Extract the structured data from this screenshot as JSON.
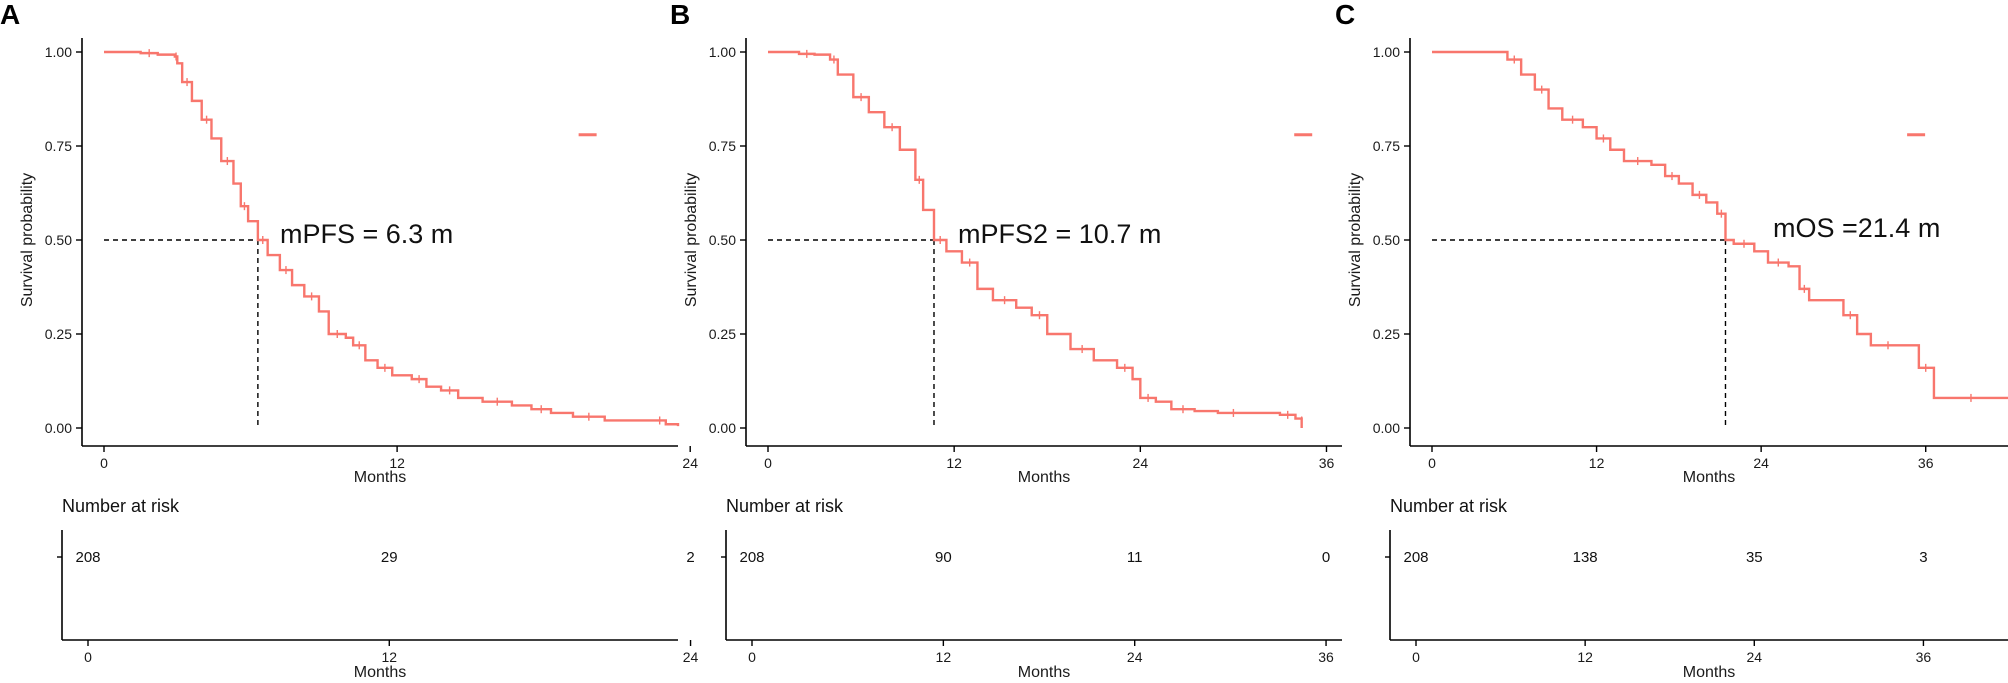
{
  "colors": {
    "curve": "#F8766D",
    "axis": "#000000",
    "median_line": "#000000"
  },
  "chart_data": [
    {
      "type": "line",
      "panel": "A",
      "annotation": "mPFS = 6.3 m",
      "median": 6.3,
      "xlabel": "Months",
      "ylabel": "Survival probability",
      "xlim": [
        -1.5,
        23.5
      ],
      "ylim": [
        0,
        1
      ],
      "x_ticks": [
        0,
        12,
        24
      ],
      "y_ticks": [
        "0.00",
        "0.25",
        "0.50",
        "0.75",
        "1.00"
      ],
      "survival_curve": [
        [
          0,
          1.0
        ],
        [
          1,
          1.0
        ],
        [
          1.5,
          0.997
        ],
        [
          2.2,
          0.993
        ],
        [
          2.9,
          0.988
        ],
        [
          3.0,
          0.97
        ],
        [
          3.2,
          0.92
        ],
        [
          3.6,
          0.87
        ],
        [
          4.0,
          0.82
        ],
        [
          4.4,
          0.77
        ],
        [
          4.8,
          0.71
        ],
        [
          5.3,
          0.65
        ],
        [
          5.6,
          0.59
        ],
        [
          5.9,
          0.55
        ],
        [
          6.3,
          0.5
        ],
        [
          6.7,
          0.46
        ],
        [
          7.2,
          0.42
        ],
        [
          7.7,
          0.38
        ],
        [
          8.2,
          0.35
        ],
        [
          8.8,
          0.31
        ],
        [
          9.2,
          0.25
        ],
        [
          9.9,
          0.24
        ],
        [
          10.2,
          0.22
        ],
        [
          10.7,
          0.18
        ],
        [
          11.2,
          0.16
        ],
        [
          11.8,
          0.14
        ],
        [
          12.6,
          0.13
        ],
        [
          13.2,
          0.11
        ],
        [
          13.8,
          0.1
        ],
        [
          14.5,
          0.08
        ],
        [
          15.5,
          0.07
        ],
        [
          16.7,
          0.06
        ],
        [
          17.5,
          0.05
        ],
        [
          18.3,
          0.04
        ],
        [
          19.2,
          0.03
        ],
        [
          20.5,
          0.02
        ],
        [
          22.5,
          0.02
        ],
        [
          23,
          0.01
        ],
        [
          23.5,
          0.005
        ]
      ],
      "legend_marker": [
        19.8,
        0.78
      ],
      "risk_table": {
        "title": "Number at risk",
        "xlabel": "Months",
        "times": [
          0,
          12,
          24
        ],
        "counts": [
          "208",
          "29",
          "2"
        ]
      }
    },
    {
      "type": "line",
      "panel": "B",
      "annotation": "mPFS2 = 10.7 m",
      "median": 10.7,
      "xlabel": "Months",
      "ylabel": "Survival probability",
      "xlim": [
        -1.5,
        37
      ],
      "ylim": [
        0,
        1
      ],
      "x_ticks": [
        0,
        12,
        24,
        36
      ],
      "y_ticks": [
        "0.00",
        "0.25",
        "0.50",
        "0.75",
        "1.00"
      ],
      "survival_curve": [
        [
          0,
          1.0
        ],
        [
          1,
          1.0
        ],
        [
          2,
          0.995
        ],
        [
          3.0,
          0.993
        ],
        [
          4.0,
          0.98
        ],
        [
          4.5,
          0.94
        ],
        [
          5.5,
          0.88
        ],
        [
          6.5,
          0.84
        ],
        [
          7.5,
          0.8
        ],
        [
          8.5,
          0.74
        ],
        [
          9.5,
          0.66
        ],
        [
          10.0,
          0.58
        ],
        [
          10.7,
          0.5
        ],
        [
          11.5,
          0.47
        ],
        [
          12.5,
          0.44
        ],
        [
          13.5,
          0.37
        ],
        [
          14.5,
          0.34
        ],
        [
          16,
          0.32
        ],
        [
          17,
          0.3
        ],
        [
          18,
          0.25
        ],
        [
          19.5,
          0.21
        ],
        [
          21,
          0.18
        ],
        [
          22.5,
          0.16
        ],
        [
          23.5,
          0.13
        ],
        [
          24,
          0.08
        ],
        [
          25,
          0.07
        ],
        [
          26,
          0.05
        ],
        [
          27.5,
          0.045
        ],
        [
          29,
          0.04
        ],
        [
          31,
          0.04
        ],
        [
          33,
          0.035
        ],
        [
          34,
          0.025
        ],
        [
          34.4,
          0.02
        ],
        [
          34.4,
          0.0
        ]
      ],
      "legend_marker": [
        34.5,
        0.78
      ],
      "risk_table": {
        "title": "Number at risk",
        "xlabel": "Months",
        "times": [
          0,
          12,
          24,
          36
        ],
        "counts": [
          "208",
          "90",
          "11",
          "0"
        ]
      }
    },
    {
      "type": "line",
      "panel": "C",
      "annotation": "mOS =21.4 m",
      "median": 21.4,
      "xlabel": "Months",
      "ylabel": "Survival probability",
      "xlim": [
        -1.5,
        42
      ],
      "ylim": [
        0,
        1
      ],
      "x_ticks": [
        0,
        12,
        24,
        36
      ],
      "y_ticks": [
        "0.00",
        "0.25",
        "0.50",
        "0.75",
        "1.00"
      ],
      "survival_curve": [
        [
          0,
          1.0
        ],
        [
          4.5,
          1.0
        ],
        [
          5.5,
          0.98
        ],
        [
          6.5,
          0.94
        ],
        [
          7.5,
          0.9
        ],
        [
          8.5,
          0.85
        ],
        [
          9.5,
          0.82
        ],
        [
          11,
          0.8
        ],
        [
          12,
          0.77
        ],
        [
          13,
          0.74
        ],
        [
          14,
          0.71
        ],
        [
          16,
          0.7
        ],
        [
          17,
          0.67
        ],
        [
          18,
          0.65
        ],
        [
          19,
          0.62
        ],
        [
          20,
          0.6
        ],
        [
          20.8,
          0.57
        ],
        [
          21.4,
          0.5
        ],
        [
          22,
          0.49
        ],
        [
          23.5,
          0.47
        ],
        [
          24.5,
          0.44
        ],
        [
          26,
          0.43
        ],
        [
          26.8,
          0.37
        ],
        [
          27.5,
          0.34
        ],
        [
          30,
          0.3
        ],
        [
          31,
          0.25
        ],
        [
          32,
          0.22
        ],
        [
          34.5,
          0.22
        ],
        [
          35.5,
          0.16
        ],
        [
          36.5,
          0.16
        ],
        [
          36.6,
          0.08
        ],
        [
          42,
          0.08
        ]
      ],
      "legend_marker": [
        35.3,
        0.78
      ],
      "risk_table": {
        "title": "Number at risk",
        "xlabel": "Months",
        "times": [
          0,
          12,
          24,
          36
        ],
        "counts": [
          "208",
          "138",
          "35",
          "3"
        ]
      }
    }
  ]
}
